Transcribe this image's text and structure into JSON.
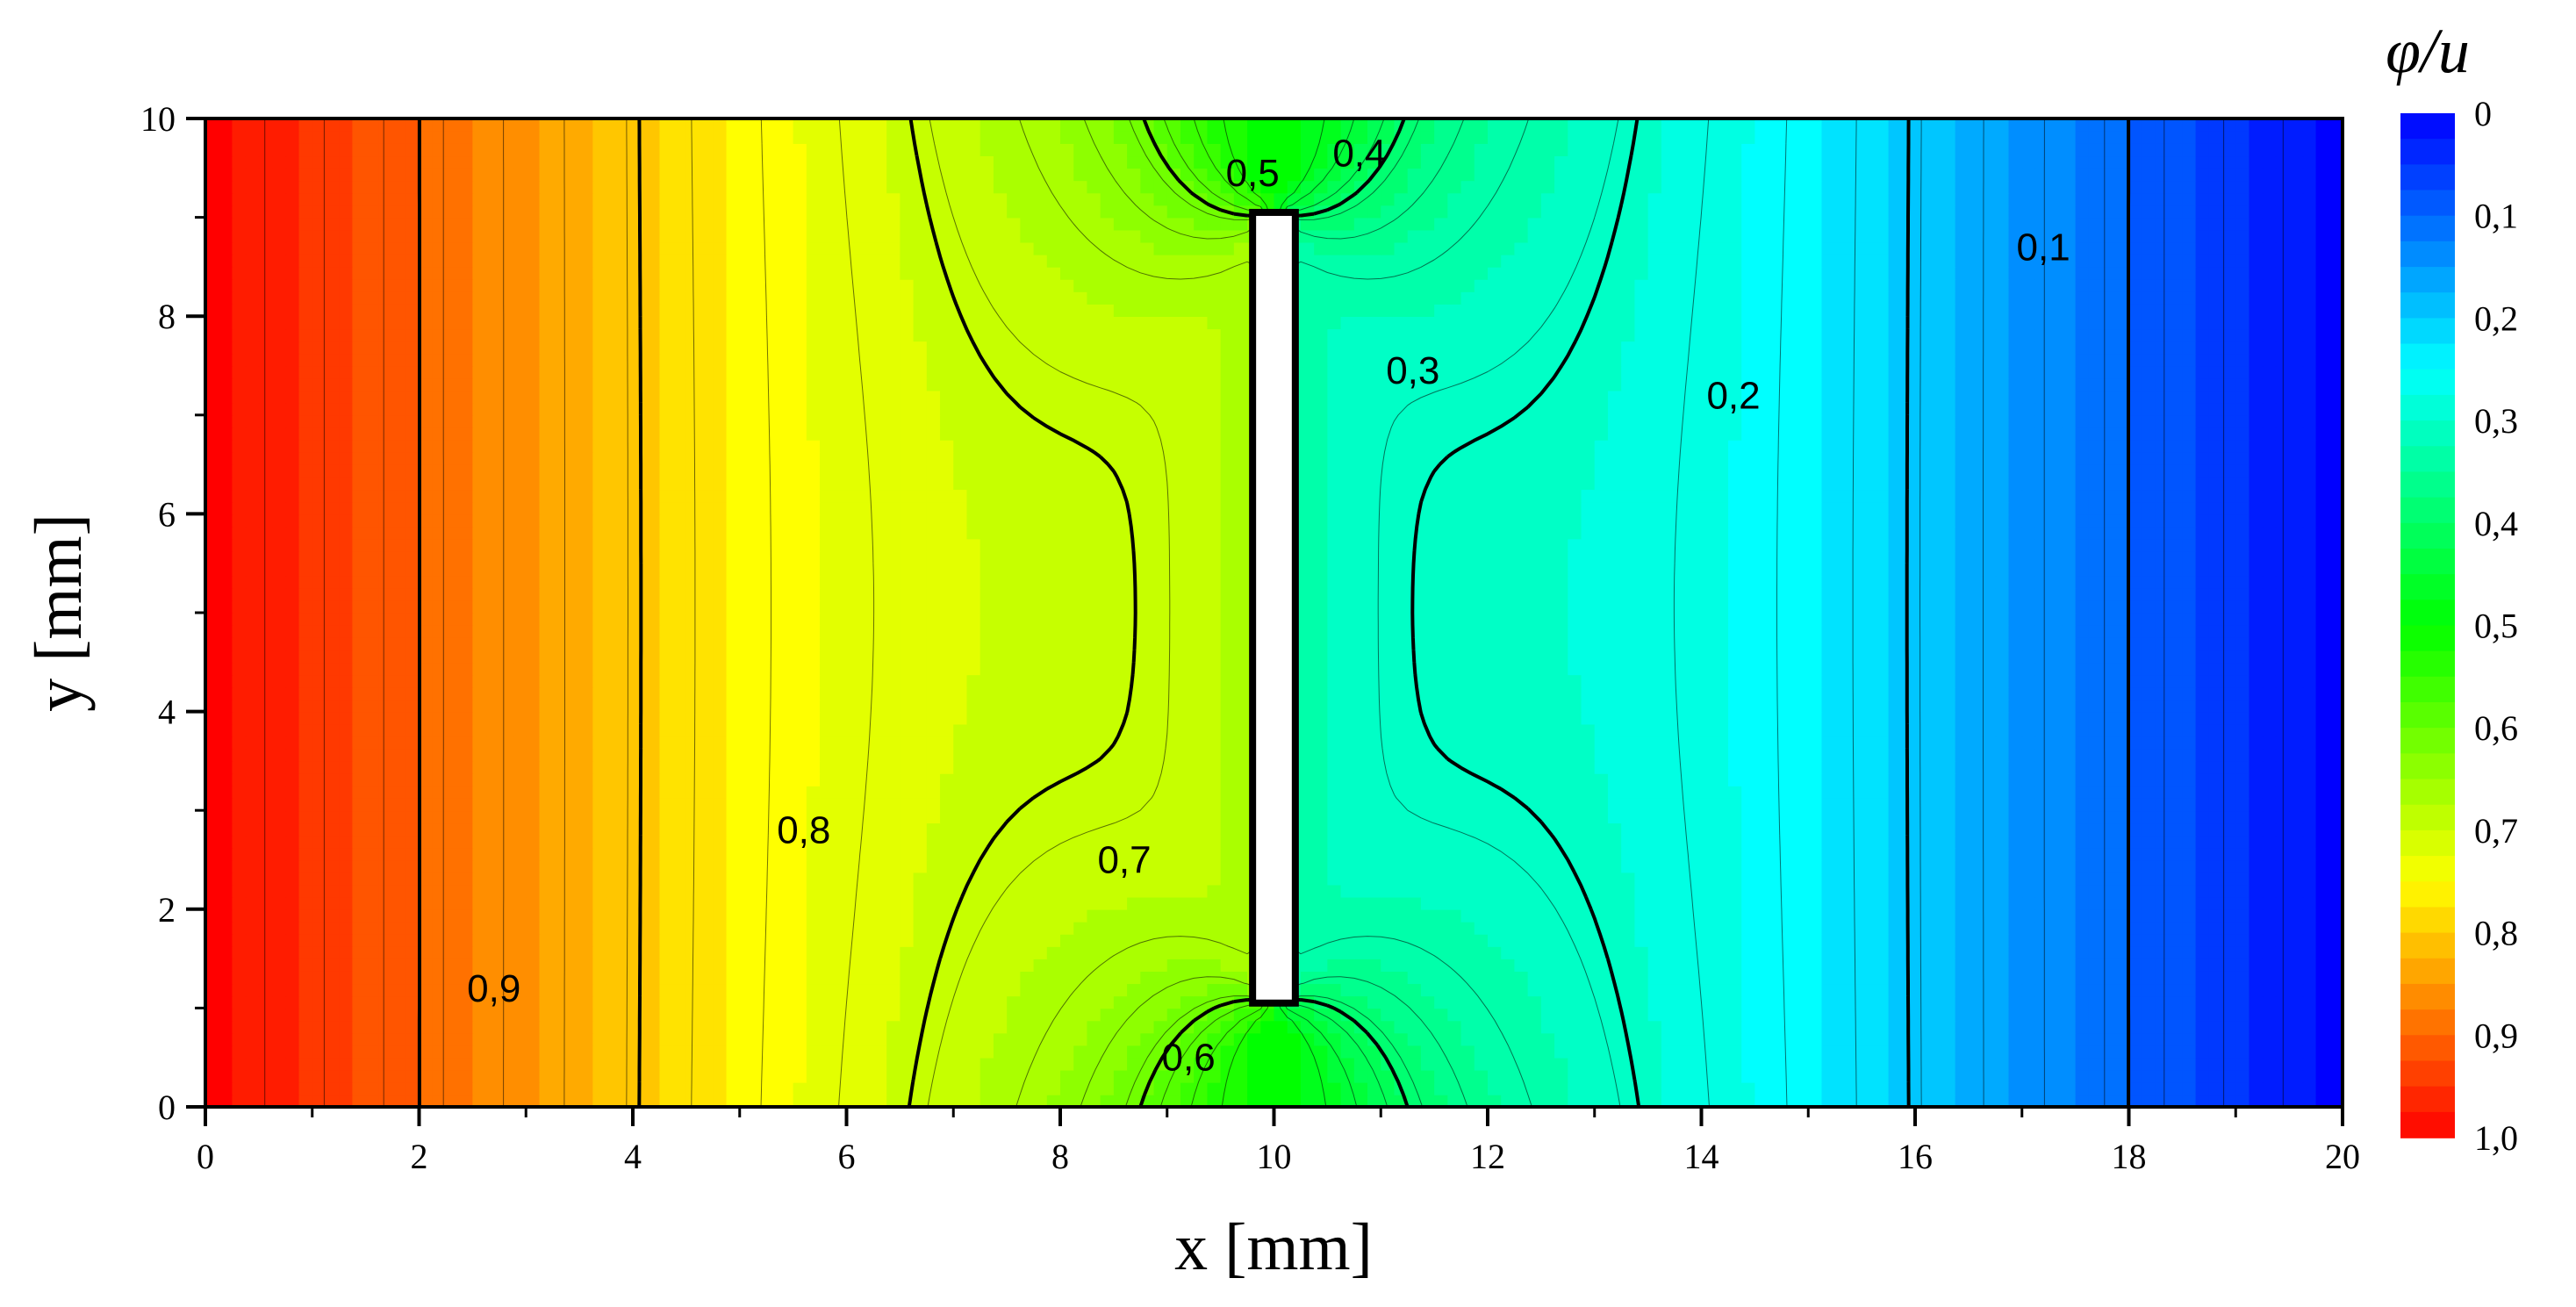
{
  "chart_data": {
    "type": "heatmap",
    "xlabel": "x [mm]",
    "ylabel": "y [mm]",
    "xlim": [
      0,
      20
    ],
    "ylim": [
      0,
      10
    ],
    "x_ticks": [
      "0",
      "2",
      "4",
      "6",
      "8",
      "10",
      "12",
      "14",
      "16",
      "18",
      "20"
    ],
    "y_ticks": [
      "0",
      "2",
      "4",
      "6",
      "8",
      "10"
    ],
    "x_tick_values": [
      0,
      2,
      4,
      6,
      8,
      10,
      12,
      14,
      16,
      18,
      20
    ],
    "y_tick_values": [
      0,
      2,
      4,
      6,
      8,
      10
    ],
    "field": "φ/u",
    "field_range": [
      0,
      1
    ],
    "obstacle": {
      "x_range": [
        9.8,
        10.2
      ],
      "y_range": [
        1.05,
        9.05
      ]
    },
    "contour_labels": [
      {
        "text": "0,9",
        "x": 2.7,
        "y": 1.2
      },
      {
        "text": "0,8",
        "x": 5.6,
        "y": 2.8
      },
      {
        "text": "0,7",
        "x": 8.6,
        "y": 2.5
      },
      {
        "text": "0,6",
        "x": 9.2,
        "y": 0.5
      },
      {
        "text": "0,5",
        "x": 9.8,
        "y": 9.45
      },
      {
        "text": "0,4",
        "x": 10.8,
        "y": 9.65
      },
      {
        "text": "0,3",
        "x": 11.3,
        "y": 7.45
      },
      {
        "text": "0,2",
        "x": 14.3,
        "y": 7.2
      },
      {
        "text": "0,1",
        "x": 17.2,
        "y": 8.7
      }
    ],
    "colorbar": {
      "title": "φ/u",
      "labels": [
        "0",
        "0,1",
        "0,2",
        "0,3",
        "0,4",
        "0,5",
        "0,6",
        "0,7",
        "0,8",
        "0,9",
        "1,0"
      ],
      "values": [
        0,
        0.1,
        0.2,
        0.3,
        0.4,
        0.5,
        0.6,
        0.7,
        0.8,
        0.9,
        1.0
      ]
    },
    "colors": {
      "0": "#0000ff",
      "0.25": "#00ffff",
      "0.5": "#00ff00",
      "0.75": "#ffff00",
      "1": "#ff0000"
    }
  }
}
